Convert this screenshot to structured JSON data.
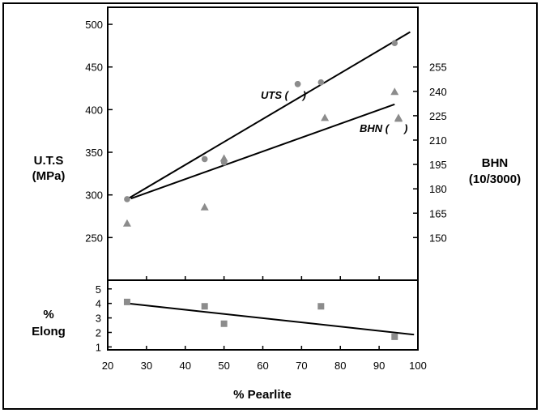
{
  "chart_data": {
    "type": "scatter",
    "xlabel": "% Pearlite",
    "x_ticks": [
      20,
      30,
      40,
      50,
      60,
      70,
      80,
      90,
      100
    ],
    "xlim": [
      20,
      100
    ],
    "upper_panel": {
      "ylabel_left": [
        "U.T.S",
        "(MPa)"
      ],
      "ylabel_right": [
        "BHN",
        "(10/3000)"
      ],
      "left_ticks": [
        250,
        300,
        350,
        400,
        450,
        500
      ],
      "right_ticks": [
        150,
        165,
        180,
        195,
        210,
        225,
        240,
        255
      ],
      "left_range": [
        200,
        520
      ],
      "series": [
        {
          "name": "UTS (",
          "marker": "circle",
          "axis": "left",
          "x": [
            25,
            45,
            50,
            69,
            75,
            94
          ],
          "y": [
            295,
            342,
            338,
            430,
            432,
            478
          ],
          "fit": [
            [
              25,
              295
            ],
            [
              98,
              491
            ]
          ]
        },
        {
          "name": "BHN (",
          "marker": "triangle",
          "axis": "right",
          "x": [
            25,
            45,
            50,
            76,
            94,
            95
          ],
          "y": [
            159,
            169,
            199,
            224,
            240,
            224
          ],
          "fit": [
            [
              26,
              174
            ],
            [
              94,
              232
            ]
          ]
        }
      ],
      "label_x": [
        69,
        95
      ]
    },
    "lower_panel": {
      "ylabel": [
        "%",
        "Elong"
      ],
      "y_ticks": [
        1,
        2,
        3,
        4,
        5
      ],
      "ylim": [
        0.8,
        5.6
      ],
      "series": [
        {
          "name": "Elong",
          "marker": "square",
          "x": [
            25,
            45,
            50,
            75,
            94
          ],
          "y": [
            4.1,
            3.8,
            2.6,
            3.8,
            1.7
          ],
          "fit": [
            [
              25,
              4.0
            ],
            [
              99,
              1.85
            ]
          ]
        }
      ]
    },
    "colors": {
      "marker": "#8c8c8c",
      "line": "#000000",
      "frame": "#000000"
    }
  }
}
